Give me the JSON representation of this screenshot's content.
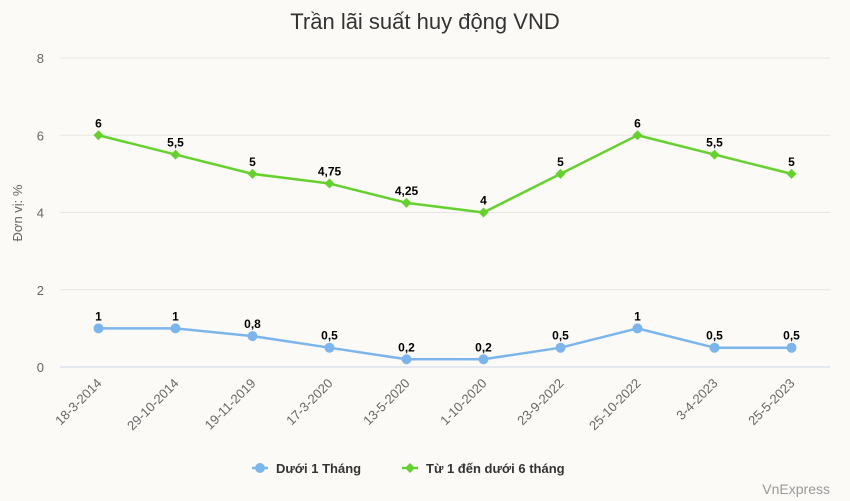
{
  "chart_data": {
    "type": "line",
    "title": "Trần lãi suất huy động VND",
    "ylabel": "Đơn vị: %",
    "xlabel": "",
    "ylim": [
      0,
      8
    ],
    "yticks": [
      0,
      2,
      4,
      6,
      8
    ],
    "grid": true,
    "legend": "bottom-center",
    "categories": [
      "18-3-2014",
      "29-10-2014",
      "19-11-2019",
      "17-3-2020",
      "13-5-2020",
      "1-10-2020",
      "23-9-2022",
      "25-10-2022",
      "3-4-2023",
      "25-5-2023"
    ],
    "series": [
      {
        "name": "Dưới 1 Tháng",
        "color": "#7cb5ec",
        "marker": "circle",
        "values": [
          1,
          1,
          0.8,
          0.5,
          0.2,
          0.2,
          0.5,
          1,
          0.5,
          0.5
        ],
        "labels": [
          "1",
          "1",
          "0,8",
          "0,5",
          "0,2",
          "0,2",
          "0,5",
          "1",
          "0,5",
          "0,5"
        ]
      },
      {
        "name": "Từ 1 đến dưới 6 tháng",
        "color": "#66d12e",
        "marker": "diamond",
        "values": [
          6,
          5.5,
          5,
          4.75,
          4.25,
          4,
          5,
          6,
          5.5,
          5
        ],
        "labels": [
          "6",
          "5,5",
          "5",
          "4,75",
          "4,25",
          "4",
          "5",
          "6",
          "5,5",
          "5"
        ]
      }
    ]
  },
  "credit": "VnExpress"
}
